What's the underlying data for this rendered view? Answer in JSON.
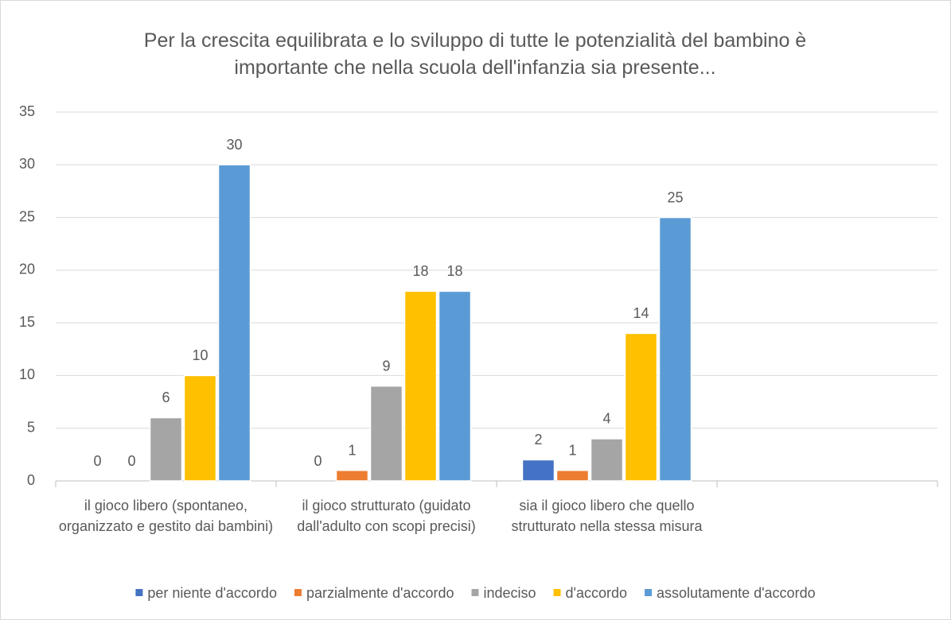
{
  "chart_data": {
    "type": "bar",
    "title": "Per la crescita equilibrata e lo sviluppo di tutte le potenzialità del bambino è importante che nella scuola dell'infanzia sia presente...",
    "categories": [
      "il gioco libero (spontaneo, organizzato e gestito dai bambini)",
      "il gioco strutturato (guidato dall'adulto con scopi precisi)",
      "sia il gioco libero che quello strutturato nella stessa misura",
      null
    ],
    "series": [
      {
        "name": "per niente d'accordo",
        "color": "#4472c4",
        "values": [
          0,
          0,
          2,
          null
        ]
      },
      {
        "name": "parzialmente d'accordo",
        "color": "#ed7d31",
        "values": [
          0,
          1,
          1,
          null
        ]
      },
      {
        "name": "indeciso",
        "color": "#a5a5a5",
        "values": [
          6,
          9,
          4,
          null
        ]
      },
      {
        "name": "d'accordo",
        "color": "#ffc000",
        "values": [
          10,
          18,
          14,
          null
        ]
      },
      {
        "name": "assolutamente d'accordo",
        "color": "#5b9bd5",
        "values": [
          30,
          18,
          25,
          null
        ]
      }
    ],
    "ylim": [
      0,
      35
    ],
    "yticks": [
      0,
      5,
      10,
      15,
      20,
      25,
      30,
      35
    ],
    "grid": true,
    "legend": "bottom"
  }
}
